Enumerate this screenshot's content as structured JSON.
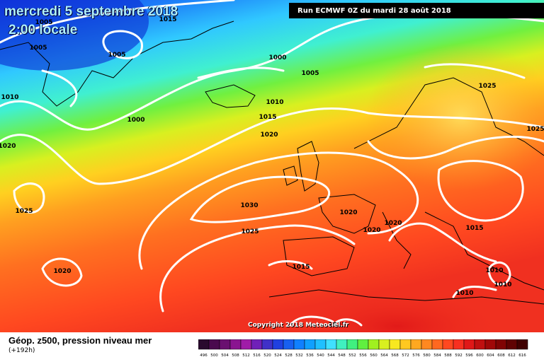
{
  "header": {
    "date": "mercredi 5 septembre 2018",
    "time": "2:00 locale",
    "run": "Run ECMWF 0Z du mardi 28 août 2018"
  },
  "copyright": "Copyright 2018 Meteociel.fr",
  "footer": {
    "title": "Géop. z500, pression niveau mer",
    "lead": "(+192h)"
  },
  "pressure_labels": [
    "1005",
    "1005",
    "1005",
    "1010",
    "1000",
    "1000",
    "1005",
    "1010",
    "1015",
    "1020",
    "1020",
    "1025",
    "1030",
    "1025",
    "1020",
    "1020",
    "1020",
    "1015",
    "1015",
    "1025",
    "1025",
    "1015",
    "1010",
    "1010",
    "1010",
    "1020",
    "1015"
  ],
  "legend": {
    "ticks": [
      "496",
      "500",
      "504",
      "508",
      "512",
      "516",
      "520",
      "524",
      "528",
      "532",
      "536",
      "540",
      "544",
      "548",
      "552",
      "556",
      "560",
      "564",
      "568",
      "572",
      "576",
      "580",
      "584",
      "588",
      "592",
      "596",
      "600",
      "604",
      "608",
      "612",
      "616"
    ],
    "colors": [
      "#2a0a2e",
      "#4a0a4e",
      "#6a1070",
      "#8a1490",
      "#a01ca8",
      "#7020b8",
      "#4030c8",
      "#2040e0",
      "#1860f0",
      "#1080ff",
      "#10a0ff",
      "#20c0ff",
      "#40e0ff",
      "#40f0c0",
      "#40f080",
      "#60f040",
      "#a0f020",
      "#d8f020",
      "#f8e820",
      "#ffc820",
      "#ffa820",
      "#ff8820",
      "#ff6820",
      "#ff4820",
      "#f83020",
      "#e01818",
      "#c01010",
      "#a00808",
      "#800404",
      "#600202",
      "#400000"
    ]
  }
}
